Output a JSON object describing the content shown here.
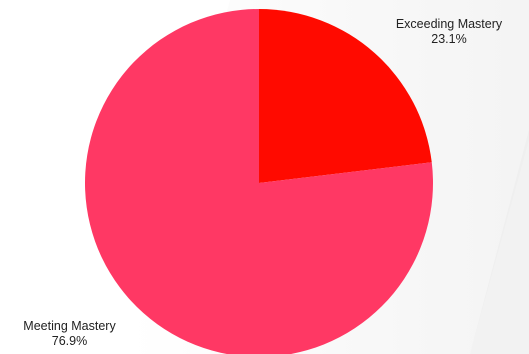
{
  "chart_data": {
    "type": "pie",
    "start_angle_deg": 0,
    "direction": "clockwise",
    "slices": [
      {
        "label": "Exceeding Mastery",
        "percent_label": "23.1%",
        "value": 23.1,
        "color": "#ff0a00"
      },
      {
        "label": "Meeting Mastery",
        "percent_label": "76.9%",
        "value": 76.9,
        "color": "#ff3864"
      }
    ],
    "legend": "none"
  }
}
